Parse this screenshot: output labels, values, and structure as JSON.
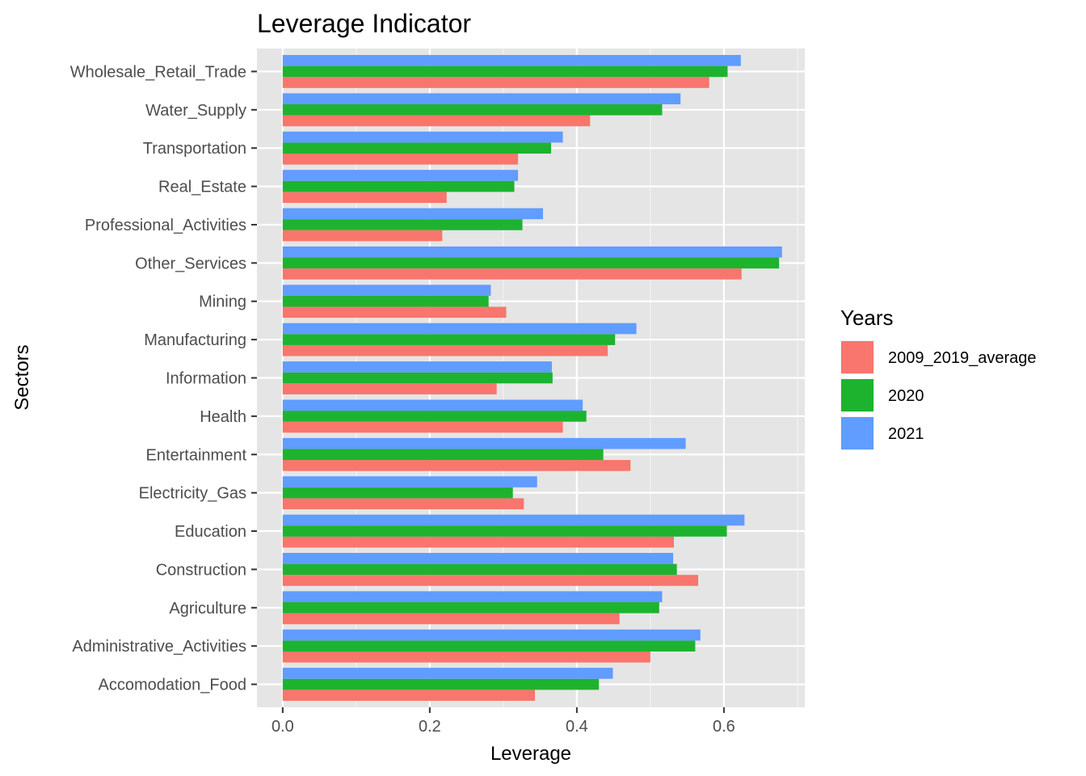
{
  "chart_data": {
    "type": "bar",
    "orientation": "horizontal",
    "title": "Leverage Indicator",
    "xlabel": "Leverage",
    "ylabel": "Sectors",
    "xlim": [
      -0.035,
      0.71
    ],
    "x_ticks": [
      0.0,
      0.2,
      0.4,
      0.6
    ],
    "x_tick_labels": [
      "0.0",
      "0.2",
      "0.4",
      "0.6"
    ],
    "grid": true,
    "panel_background": "#e5e5e5",
    "legend": {
      "title": "Years",
      "position": "right"
    },
    "categories": [
      "Accomodation_Food",
      "Administrative_Activities",
      "Agriculture",
      "Construction",
      "Education",
      "Electricity_Gas",
      "Entertainment",
      "Health",
      "Information",
      "Manufacturing",
      "Mining",
      "Other_Services",
      "Professional_Activities",
      "Real_Estate",
      "Transportation",
      "Water_Supply",
      "Wholesale_Retail_Trade"
    ],
    "series": [
      {
        "name": "2009_2019_average",
        "color": "#f8766d",
        "values": [
          0.343,
          0.5,
          0.458,
          0.565,
          0.532,
          0.328,
          0.473,
          0.381,
          0.291,
          0.442,
          0.304,
          0.624,
          0.217,
          0.223,
          0.32,
          0.418,
          0.58
        ]
      },
      {
        "name": "2020",
        "color": "#1eb32f",
        "values": [
          0.43,
          0.561,
          0.512,
          0.536,
          0.604,
          0.313,
          0.436,
          0.413,
          0.367,
          0.452,
          0.28,
          0.675,
          0.326,
          0.315,
          0.365,
          0.516,
          0.605
        ]
      },
      {
        "name": "2021",
        "color": "#619cff",
        "values": [
          0.449,
          0.568,
          0.516,
          0.531,
          0.628,
          0.346,
          0.548,
          0.408,
          0.366,
          0.481,
          0.283,
          0.679,
          0.354,
          0.32,
          0.381,
          0.541,
          0.623
        ]
      }
    ]
  }
}
